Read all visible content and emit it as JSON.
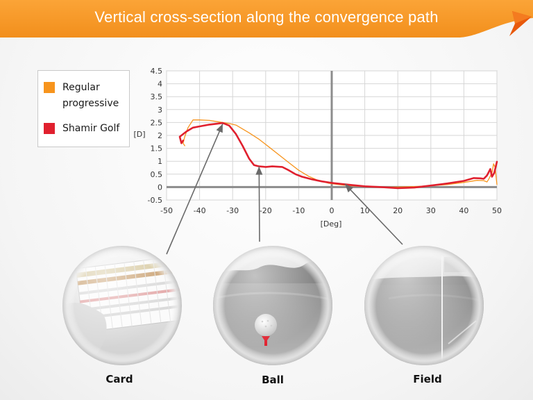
{
  "header": {
    "title": "Vertical cross-section along the convergence path"
  },
  "legend": {
    "items": [
      {
        "label_line1": "Regular",
        "label_line2": "progressive",
        "color": "#f7941d"
      },
      {
        "label_line1": "Shamir Golf",
        "label_line2": "",
        "color": "#e0202e"
      }
    ]
  },
  "lenses": [
    {
      "label": "Card",
      "icon": "scorecard-in-hand-photo",
      "target_x": -33,
      "target_y": 2.45
    },
    {
      "label": "Ball",
      "icon": "golf-ball-on-tee-photo",
      "target_x": -22,
      "target_y": 0.8
    },
    {
      "label": "Field",
      "icon": "golf-field-photo",
      "target_x": 4,
      "target_y": 0.12
    }
  ],
  "colors": {
    "accent": "#f7941d",
    "accent_dark": "#e8590c",
    "golf": "#e0202e",
    "arrow": "#6a6a6a"
  },
  "chart_data": {
    "type": "line",
    "xlabel": "[Deg]",
    "ylabel": "[D]",
    "xlim": [
      -50,
      50
    ],
    "ylim": [
      -0.5,
      4.5
    ],
    "x_ticks": [
      -50,
      -40,
      -30,
      -20,
      -10,
      0,
      10,
      20,
      30,
      40,
      50
    ],
    "y_ticks": [
      -0.5,
      0,
      0.5,
      1,
      1.5,
      2,
      2.5,
      3,
      3.5,
      4,
      4.5
    ],
    "grid": true,
    "legend_position": "left",
    "series": [
      {
        "name": "Regular progressive",
        "color": "#f7941d",
        "points": [
          [
            -44.5,
            1.6
          ],
          [
            -45,
            1.7
          ],
          [
            -44.5,
            1.95
          ],
          [
            -43.5,
            2.3
          ],
          [
            -42,
            2.6
          ],
          [
            -40,
            2.6
          ],
          [
            -37,
            2.58
          ],
          [
            -34,
            2.52
          ],
          [
            -31,
            2.46
          ],
          [
            -29,
            2.4
          ],
          [
            -27,
            2.25
          ],
          [
            -25,
            2.1
          ],
          [
            -22,
            1.85
          ],
          [
            -19,
            1.55
          ],
          [
            -16,
            1.25
          ],
          [
            -13,
            0.95
          ],
          [
            -10,
            0.65
          ],
          [
            -7,
            0.42
          ],
          [
            -4,
            0.25
          ],
          [
            -1,
            0.15
          ],
          [
            2,
            0.1
          ],
          [
            5,
            0.06
          ],
          [
            10,
            0.02
          ],
          [
            15,
            0.0
          ],
          [
            20,
            0.0
          ],
          [
            25,
            0.02
          ],
          [
            30,
            0.05
          ],
          [
            35,
            0.1
          ],
          [
            40,
            0.18
          ],
          [
            44,
            0.26
          ],
          [
            46,
            0.25
          ],
          [
            47,
            0.2
          ],
          [
            47.5,
            0.3
          ],
          [
            48.5,
            0.55
          ],
          [
            49,
            0.9
          ],
          [
            49.5,
            0.75
          ],
          [
            49.8,
            0.35
          ],
          [
            50,
            0.1
          ]
        ]
      },
      {
        "name": "Shamir Golf",
        "color": "#e0202e",
        "points": [
          [
            -45,
            1.8
          ],
          [
            -45.5,
            1.7
          ],
          [
            -46,
            1.95
          ],
          [
            -44,
            2.15
          ],
          [
            -42,
            2.3
          ],
          [
            -40,
            2.35
          ],
          [
            -37,
            2.42
          ],
          [
            -35,
            2.45
          ],
          [
            -33,
            2.48
          ],
          [
            -31,
            2.38
          ],
          [
            -29,
            2.05
          ],
          [
            -27,
            1.6
          ],
          [
            -25,
            1.1
          ],
          [
            -23.5,
            0.85
          ],
          [
            -22,
            0.8
          ],
          [
            -20,
            0.78
          ],
          [
            -18,
            0.8
          ],
          [
            -15,
            0.78
          ],
          [
            -13,
            0.65
          ],
          [
            -11,
            0.5
          ],
          [
            -9,
            0.4
          ],
          [
            -6,
            0.3
          ],
          [
            -3,
            0.22
          ],
          [
            0,
            0.16
          ],
          [
            3,
            0.12
          ],
          [
            6,
            0.08
          ],
          [
            10,
            0.03
          ],
          [
            15,
            0.0
          ],
          [
            20,
            -0.04
          ],
          [
            25,
            -0.02
          ],
          [
            30,
            0.06
          ],
          [
            35,
            0.14
          ],
          [
            40,
            0.24
          ],
          [
            43,
            0.35
          ],
          [
            45,
            0.34
          ],
          [
            46,
            0.32
          ],
          [
            47,
            0.45
          ],
          [
            48,
            0.7
          ],
          [
            48.5,
            0.4
          ],
          [
            49.2,
            0.55
          ],
          [
            50,
            0.98
          ]
        ]
      }
    ]
  }
}
